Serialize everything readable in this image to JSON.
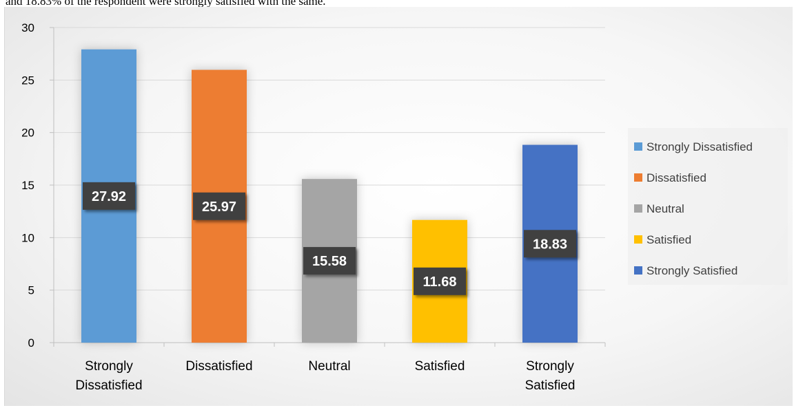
{
  "page": {
    "caption_line": "and 18.83% of the respondent were strongly satisfied with the same."
  },
  "chart_data": {
    "type": "bar",
    "title": "",
    "xlabel": "",
    "ylabel": "",
    "categories": [
      "Strongly Dissatisfied",
      "Dissatisfied",
      "Neutral",
      "Satisfied",
      "Strongly Satisfied"
    ],
    "category_lines": [
      [
        "Strongly",
        "Dissatisfied"
      ],
      [
        "Dissatisfied"
      ],
      [
        "Neutral"
      ],
      [
        "Satisfied"
      ],
      [
        "Strongly",
        "Satisfied"
      ]
    ],
    "values": [
      27.92,
      25.97,
      15.58,
      11.68,
      18.83
    ],
    "data_labels": [
      "27.92",
      "25.97",
      "15.58",
      "11.68",
      "18.83"
    ],
    "colors": [
      "#5b9bd5",
      "#ed7d31",
      "#a5a5a5",
      "#ffc000",
      "#4472c4"
    ],
    "ylim": [
      0,
      30
    ],
    "yticks": [
      0,
      5,
      10,
      15,
      20,
      25,
      30
    ],
    "grid": true,
    "legend": {
      "position": "right",
      "entries": [
        "Strongly Dissatisfied",
        "Dissatisfied",
        "Neutral",
        "Satisfied",
        "Strongly Satisfied"
      ]
    }
  }
}
